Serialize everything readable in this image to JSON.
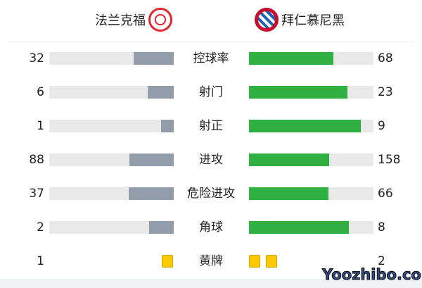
{
  "home": {
    "name": "法兰克福",
    "logo": "eintracht-frankfurt-crest"
  },
  "away": {
    "name": "拜仁慕尼黑",
    "logo": "bayern-munich-crest"
  },
  "colors": {
    "home_bar": "#939cab",
    "away_bar": "#30b043",
    "track": "#e9e9e9",
    "yellow_card": "#fdc900"
  },
  "stats": [
    {
      "label": "控球率",
      "home": "32",
      "away": "68"
    },
    {
      "label": "射门",
      "home": "6",
      "away": "23"
    },
    {
      "label": "射正",
      "home": "1",
      "away": "9"
    },
    {
      "label": "进攻",
      "home": "88",
      "away": "158"
    },
    {
      "label": "危险进攻",
      "home": "37",
      "away": "66"
    },
    {
      "label": "角球",
      "home": "2",
      "away": "8"
    }
  ],
  "yellow_cards": {
    "label": "黄牌",
    "home": "1",
    "away": "2"
  },
  "watermark": "Yoozhibo.com"
}
